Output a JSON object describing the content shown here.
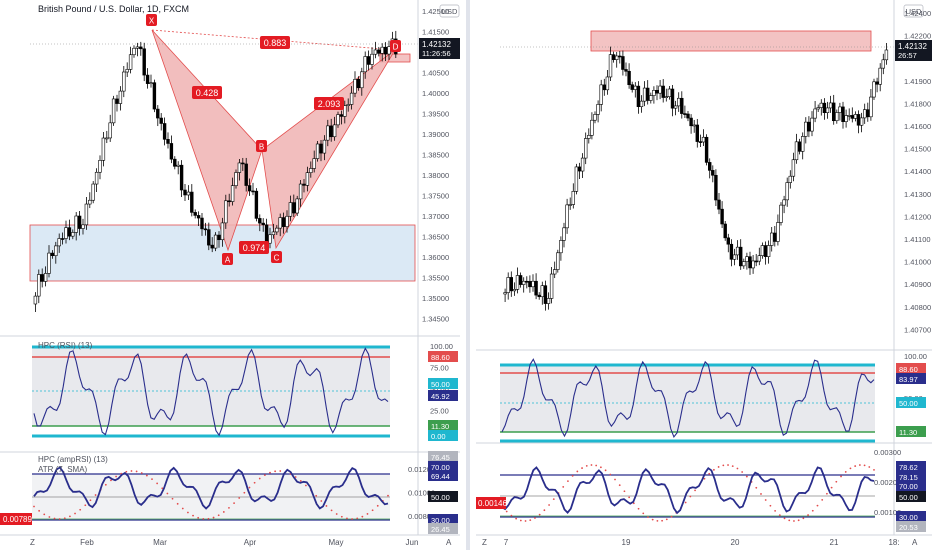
{
  "colors": {
    "candle": "#000000",
    "harmonic_fill": "#f0b3b3",
    "harmonic_stroke": "#e34d4d",
    "blue_zone_fill": "#dbe9f5",
    "red_zone_fill": "#f3c3c3",
    "axis_text": "#50535e",
    "line_indicator": "#2a2e8c",
    "level_cyan": "#1fb7cf",
    "level_red": "#e34d4d",
    "level_green": "#3c9e4e",
    "label_red": "#e31b23"
  },
  "left": {
    "symbol_title": "British Pound / U.S. Dollar, 1D, FXCM",
    "currency_badge": "USD",
    "price_label": "1.42132",
    "countdown_label": "11:26:56",
    "price_ticks": [
      "1.42500",
      "1.41500",
      "1.41000",
      "1.40500",
      "1.40000",
      "1.39500",
      "1.39000",
      "1.38500",
      "1.38000",
      "1.37500",
      "1.37000",
      "1.36500",
      "1.36000",
      "1.35500",
      "1.35000",
      "1.34500"
    ],
    "time_ticks": [
      "Feb",
      "Mar",
      "Apr",
      "May",
      "Jun"
    ],
    "pattern_points": [
      "X",
      "A",
      "B",
      "C",
      "D"
    ],
    "ratios": [
      "0.883",
      "0.428",
      "0.974",
      "2.093"
    ],
    "ind1": {
      "title": "HPC (RSI) (13)",
      "ticks": [
        "100.00",
        "75.00",
        "50.00",
        "25.00",
        "0.00"
      ],
      "labels": [
        "88.60",
        "50.00",
        "45.92",
        "11.30",
        "0.00"
      ]
    },
    "ind2": {
      "title": "HPC (ampRSI) (13)",
      "subtitle": "ATR (7, SMA)",
      "ticks": [
        "0.01200",
        "0.01000",
        "0.00800"
      ],
      "atr_badge": "0.00789",
      "labels": [
        "76.45",
        "70.00",
        "69.44",
        "50.00",
        "30.00",
        "26.45"
      ]
    },
    "axis_corner": "A",
    "axis_corner_left": "Z"
  },
  "right": {
    "currency_badge": "USD",
    "price_label": "1.42132",
    "countdown_label": "26:57",
    "price_ticks": [
      "1.42400",
      "1.42200",
      "1.42000",
      "1.41900",
      "1.41800",
      "1.41600",
      "1.41500",
      "1.41400",
      "1.41300",
      "1.41200",
      "1.41100",
      "1.41000",
      "1.40900",
      "1.40800",
      "1.40700"
    ],
    "time_ticks": [
      "7",
      "19",
      "20",
      "21",
      "18:"
    ],
    "ind1": {
      "ticks": [
        "100.00",
        "75.00",
        "50.00"
      ],
      "labels": [
        "88.60",
        "83.97",
        "50.00",
        "11.30"
      ]
    },
    "ind2": {
      "ticks": [
        "0.00300",
        "0.00200",
        "0.00100"
      ],
      "atr_badge": "0.00146",
      "labels": [
        "78.62",
        "78.15",
        "70.00",
        "50.00",
        "30.00",
        "20.53"
      ]
    },
    "axis_corner": "A",
    "axis_corner_left": "Z"
  }
}
